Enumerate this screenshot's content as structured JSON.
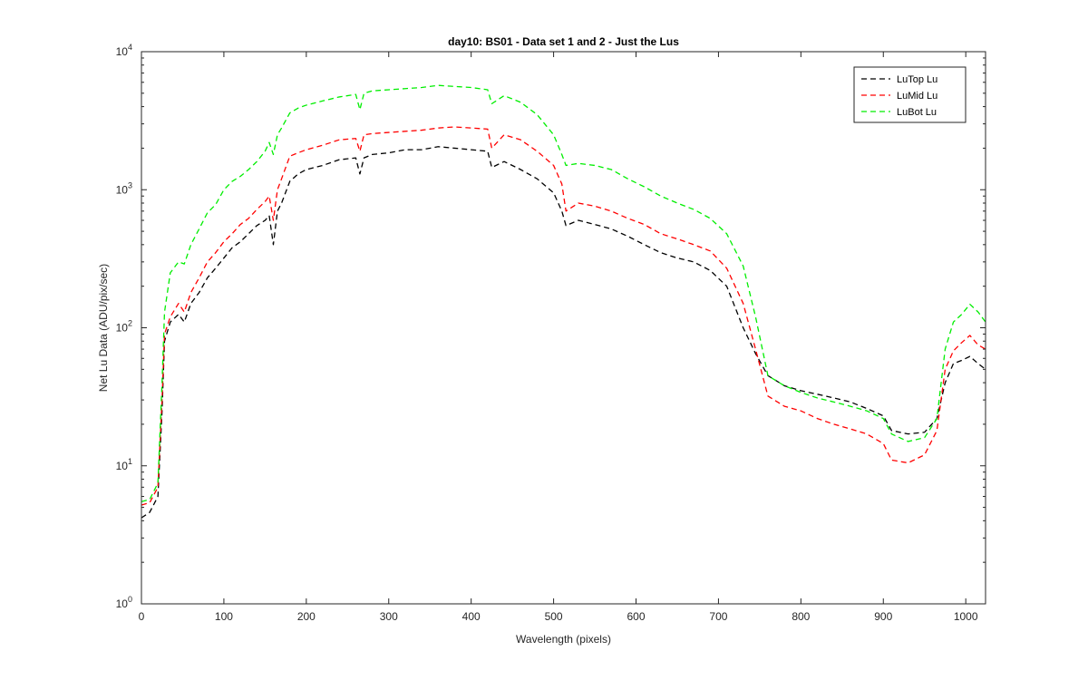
{
  "chart_data": {
    "type": "line",
    "title": "day10: BS01 - Data set 1 and 2 - Just the Lus",
    "xlabel": "Wavelength (pixels)",
    "ylabel": "Net Lu Data (ADU/pix/sec)",
    "xlim": [
      0,
      1024
    ],
    "ylim": [
      1,
      10000
    ],
    "yscale": "log",
    "grid": false,
    "legend_position": "top-right",
    "x_ticks": [
      0,
      100,
      200,
      300,
      400,
      500,
      600,
      700,
      800,
      900,
      1000
    ],
    "x_tick_labels": [
      "0",
      "100",
      "200",
      "300",
      "400",
      "500",
      "600",
      "700",
      "800",
      "900",
      "1000"
    ],
    "y_ticks": [
      1,
      10,
      100,
      1000,
      10000
    ],
    "y_tick_labels": [
      {
        "base": "10",
        "exp": "0"
      },
      {
        "base": "10",
        "exp": "1"
      },
      {
        "base": "10",
        "exp": "2"
      },
      {
        "base": "10",
        "exp": "3"
      },
      {
        "base": "10",
        "exp": "4"
      }
    ],
    "series": [
      {
        "name": "LuTop  Lu",
        "color": "#000000",
        "dash": "dashed",
        "points": [
          [
            0,
            4.2
          ],
          [
            10,
            4.6
          ],
          [
            20,
            6
          ],
          [
            25,
            25
          ],
          [
            28,
            80
          ],
          [
            35,
            110
          ],
          [
            45,
            125
          ],
          [
            52,
            110
          ],
          [
            60,
            150
          ],
          [
            70,
            180
          ],
          [
            80,
            230
          ],
          [
            90,
            270
          ],
          [
            100,
            320
          ],
          [
            110,
            380
          ],
          [
            120,
            420
          ],
          [
            130,
            480
          ],
          [
            140,
            550
          ],
          [
            150,
            600
          ],
          [
            155,
            650
          ],
          [
            160,
            400
          ],
          [
            165,
            700
          ],
          [
            170,
            800
          ],
          [
            180,
            1150
          ],
          [
            190,
            1300
          ],
          [
            200,
            1400
          ],
          [
            220,
            1500
          ],
          [
            240,
            1650
          ],
          [
            260,
            1700
          ],
          [
            265,
            1300
          ],
          [
            270,
            1700
          ],
          [
            280,
            1800
          ],
          [
            300,
            1850
          ],
          [
            320,
            1950
          ],
          [
            340,
            1950
          ],
          [
            360,
            2050
          ],
          [
            380,
            2000
          ],
          [
            400,
            1950
          ],
          [
            420,
            1900
          ],
          [
            425,
            1450
          ],
          [
            440,
            1600
          ],
          [
            460,
            1400
          ],
          [
            480,
            1200
          ],
          [
            500,
            950
          ],
          [
            510,
            700
          ],
          [
            515,
            550
          ],
          [
            530,
            600
          ],
          [
            550,
            560
          ],
          [
            570,
            520
          ],
          [
            590,
            460
          ],
          [
            610,
            400
          ],
          [
            630,
            350
          ],
          [
            650,
            320
          ],
          [
            670,
            300
          ],
          [
            690,
            260
          ],
          [
            710,
            200
          ],
          [
            730,
            100
          ],
          [
            745,
            65
          ],
          [
            760,
            45
          ],
          [
            780,
            38
          ],
          [
            800,
            35
          ],
          [
            820,
            33
          ],
          [
            840,
            31
          ],
          [
            860,
            29
          ],
          [
            880,
            26
          ],
          [
            900,
            23
          ],
          [
            910,
            18
          ],
          [
            930,
            17
          ],
          [
            950,
            17.5
          ],
          [
            965,
            22
          ],
          [
            975,
            40
          ],
          [
            985,
            55
          ],
          [
            995,
            58
          ],
          [
            1005,
            62
          ],
          [
            1015,
            55
          ],
          [
            1024,
            50
          ]
        ]
      },
      {
        "name": "LuMid  Lu",
        "color": "#ff0000",
        "dash": "dashed",
        "points": [
          [
            0,
            5.2
          ],
          [
            10,
            5.4
          ],
          [
            20,
            7
          ],
          [
            25,
            30
          ],
          [
            28,
            90
          ],
          [
            35,
            120
          ],
          [
            45,
            150
          ],
          [
            52,
            130
          ],
          [
            60,
            180
          ],
          [
            70,
            230
          ],
          [
            80,
            300
          ],
          [
            90,
            350
          ],
          [
            100,
            420
          ],
          [
            110,
            480
          ],
          [
            120,
            560
          ],
          [
            130,
            620
          ],
          [
            140,
            720
          ],
          [
            150,
            820
          ],
          [
            155,
            900
          ],
          [
            160,
            600
          ],
          [
            165,
            1000
          ],
          [
            170,
            1200
          ],
          [
            180,
            1750
          ],
          [
            190,
            1850
          ],
          [
            200,
            1950
          ],
          [
            220,
            2100
          ],
          [
            240,
            2300
          ],
          [
            260,
            2350
          ],
          [
            265,
            1900
          ],
          [
            270,
            2500
          ],
          [
            280,
            2550
          ],
          [
            300,
            2600
          ],
          [
            320,
            2650
          ],
          [
            340,
            2700
          ],
          [
            360,
            2800
          ],
          [
            380,
            2850
          ],
          [
            400,
            2800
          ],
          [
            420,
            2750
          ],
          [
            425,
            2000
          ],
          [
            440,
            2500
          ],
          [
            460,
            2300
          ],
          [
            480,
            1900
          ],
          [
            500,
            1500
          ],
          [
            510,
            1100
          ],
          [
            515,
            700
          ],
          [
            530,
            800
          ],
          [
            550,
            760
          ],
          [
            570,
            700
          ],
          [
            590,
            620
          ],
          [
            610,
            560
          ],
          [
            630,
            480
          ],
          [
            650,
            440
          ],
          [
            670,
            400
          ],
          [
            690,
            360
          ],
          [
            710,
            270
          ],
          [
            730,
            150
          ],
          [
            745,
            70
          ],
          [
            760,
            32
          ],
          [
            780,
            27
          ],
          [
            800,
            25
          ],
          [
            820,
            22
          ],
          [
            840,
            20
          ],
          [
            860,
            18.5
          ],
          [
            880,
            17
          ],
          [
            900,
            14.5
          ],
          [
            910,
            11
          ],
          [
            930,
            10.5
          ],
          [
            950,
            12
          ],
          [
            965,
            18
          ],
          [
            975,
            50
          ],
          [
            985,
            68
          ],
          [
            995,
            78
          ],
          [
            1005,
            88
          ],
          [
            1015,
            75
          ],
          [
            1024,
            70
          ]
        ]
      },
      {
        "name": "LuBot  Lu",
        "color": "#00ee00",
        "dash": "dashed",
        "points": [
          [
            0,
            5.5
          ],
          [
            10,
            5.7
          ],
          [
            20,
            7.5
          ],
          [
            25,
            40
          ],
          [
            28,
            130
          ],
          [
            35,
            250
          ],
          [
            45,
            300
          ],
          [
            52,
            290
          ],
          [
            60,
            400
          ],
          [
            70,
            520
          ],
          [
            80,
            680
          ],
          [
            90,
            780
          ],
          [
            100,
            1000
          ],
          [
            110,
            1150
          ],
          [
            120,
            1250
          ],
          [
            130,
            1400
          ],
          [
            140,
            1600
          ],
          [
            150,
            1900
          ],
          [
            155,
            2200
          ],
          [
            160,
            1800
          ],
          [
            165,
            2500
          ],
          [
            170,
            2800
          ],
          [
            180,
            3600
          ],
          [
            190,
            3900
          ],
          [
            200,
            4100
          ],
          [
            220,
            4400
          ],
          [
            240,
            4700
          ],
          [
            260,
            4900
          ],
          [
            265,
            3800
          ],
          [
            270,
            5000
          ],
          [
            280,
            5200
          ],
          [
            300,
            5300
          ],
          [
            320,
            5400
          ],
          [
            340,
            5500
          ],
          [
            360,
            5700
          ],
          [
            380,
            5600
          ],
          [
            400,
            5500
          ],
          [
            420,
            5300
          ],
          [
            425,
            4200
          ],
          [
            440,
            4800
          ],
          [
            460,
            4300
          ],
          [
            480,
            3500
          ],
          [
            500,
            2500
          ],
          [
            510,
            1800
          ],
          [
            515,
            1500
          ],
          [
            530,
            1550
          ],
          [
            550,
            1500
          ],
          [
            570,
            1400
          ],
          [
            590,
            1200
          ],
          [
            610,
            1050
          ],
          [
            630,
            900
          ],
          [
            650,
            800
          ],
          [
            670,
            720
          ],
          [
            690,
            620
          ],
          [
            710,
            480
          ],
          [
            730,
            280
          ],
          [
            745,
            120
          ],
          [
            760,
            45
          ],
          [
            780,
            38
          ],
          [
            800,
            34
          ],
          [
            820,
            31
          ],
          [
            840,
            29
          ],
          [
            860,
            27
          ],
          [
            880,
            25
          ],
          [
            900,
            22
          ],
          [
            910,
            17
          ],
          [
            930,
            15
          ],
          [
            950,
            16
          ],
          [
            965,
            22
          ],
          [
            975,
            70
          ],
          [
            985,
            110
          ],
          [
            995,
            125
          ],
          [
            1005,
            148
          ],
          [
            1015,
            130
          ],
          [
            1024,
            110
          ]
        ]
      }
    ]
  }
}
